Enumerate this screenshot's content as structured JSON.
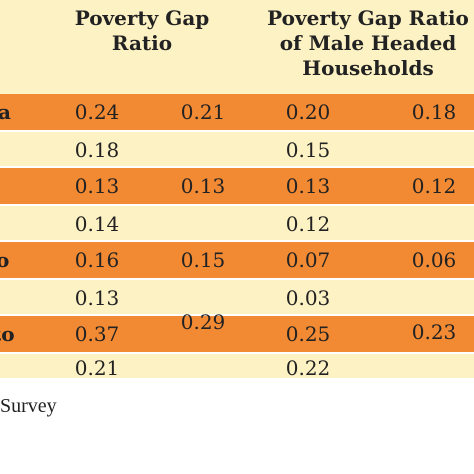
{
  "header": {
    "col1": "Poverty Gap\nRatio",
    "col2": "Poverty Gap Ratio\nof Male Headed\nHouseholds"
  },
  "rows": [
    {
      "label": "a",
      "v1": "0.24",
      "v2": "0.21",
      "v3": "0.20",
      "v4": "0.18"
    },
    {
      "label": "",
      "v1": "0.18",
      "v2": "",
      "v3": "0.15",
      "v4": ""
    },
    {
      "label": "",
      "v1": "0.13",
      "v2": "0.13",
      "v3": "0.13",
      "v4": "0.12"
    },
    {
      "label": "",
      "v1": "0.14",
      "v2": "",
      "v3": "0.12",
      "v4": ""
    },
    {
      "label": "o",
      "v1": "0.16",
      "v2": "0.15",
      "v3": "0.07",
      "v4": "0.06"
    },
    {
      "label": "",
      "v1": "0.13",
      "v2": "",
      "v3": "0.03",
      "v4": ""
    },
    {
      "label": "to",
      "v1": "0.37",
      "v2": "0.29",
      "v3": "0.25",
      "v4": "0.23"
    },
    {
      "label": "",
      "v1": "0.21",
      "v2": "",
      "v3": "0.22",
      "v4": ""
    }
  ],
  "source": "Survey",
  "colors": {
    "orange": "#f28a34",
    "yellow": "#fdf2c4"
  }
}
